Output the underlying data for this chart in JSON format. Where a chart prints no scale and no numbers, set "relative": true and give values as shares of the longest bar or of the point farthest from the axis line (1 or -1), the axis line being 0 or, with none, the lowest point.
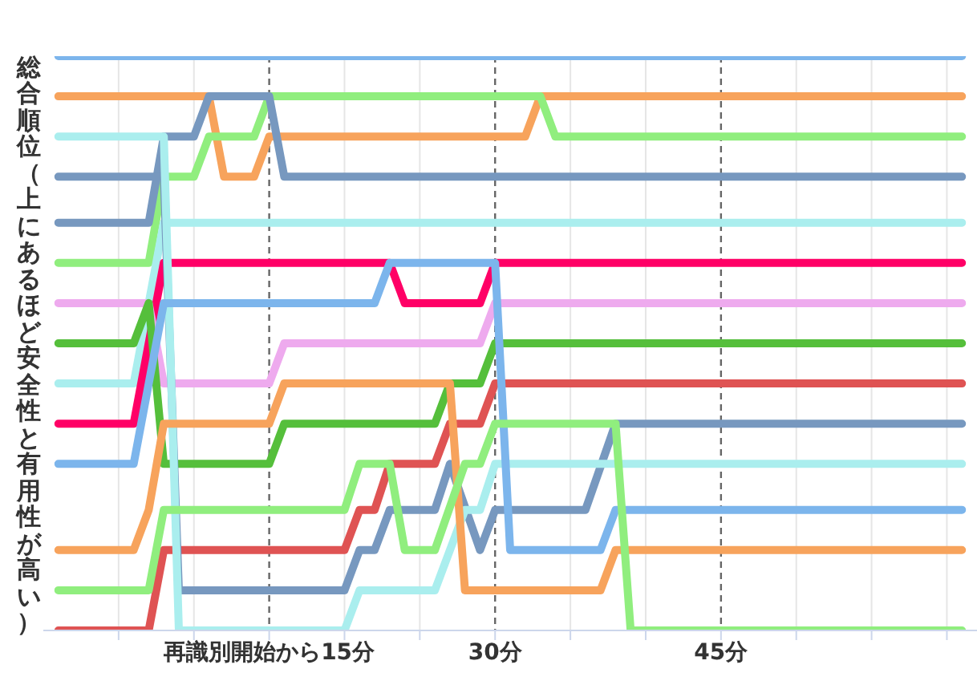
{
  "chart_data": {
    "type": "line",
    "ylabel": "総合順位（上にあるほど安全性と有用性が高い）",
    "relative": true,
    "xlim": [
      0,
      62
    ],
    "xticks": [
      {
        "value": 5,
        "label": null
      },
      {
        "value": 10,
        "label": null
      },
      {
        "value": 15,
        "label": "再識別開始から15分"
      },
      {
        "value": 20,
        "label": null
      },
      {
        "value": 25,
        "label": null
      },
      {
        "value": 30,
        "label": "30分"
      },
      {
        "value": 35,
        "label": null
      },
      {
        "value": 40,
        "label": null
      },
      {
        "value": 45,
        "label": "45分"
      },
      {
        "value": 50,
        "label": null
      },
      {
        "value": 55,
        "label": null
      },
      {
        "value": 60,
        "label": null
      }
    ],
    "grid": "x",
    "tick_labels": "x",
    "marker": "none",
    "line_style": "solid",
    "series": [
      {
        "color": "#7cb5ec",
        "x": [
          1,
          61
        ],
        "values": [
          1,
          1
        ]
      },
      {
        "color": "#f7a35c",
        "x": [
          1,
          11,
          12,
          14,
          15,
          32,
          33,
          61
        ],
        "values": [
          0.93,
          0.93,
          0.79,
          0.79,
          0.86,
          0.86,
          0.93,
          0.93
        ]
      },
      {
        "color": "#90ee7e",
        "x": [
          1,
          7,
          8,
          10,
          11,
          14,
          15,
          33,
          34,
          61
        ],
        "values": [
          0.64,
          0.64,
          0.79,
          0.79,
          0.86,
          0.86,
          0.93,
          0.93,
          0.86,
          0.86
        ]
      },
      {
        "color": "#7798bf",
        "x": [
          1,
          7,
          8,
          10,
          11,
          15,
          16,
          61
        ],
        "values": [
          0.71,
          0.71,
          0.86,
          0.86,
          0.93,
          0.93,
          0.79,
          0.79
        ]
      },
      {
        "color": "#aaeeee",
        "x": [
          1,
          6,
          8,
          61
        ],
        "values": [
          0.43,
          0.43,
          0.71,
          0.71
        ]
      },
      {
        "color": "#ff0066",
        "x": [
          1,
          6,
          8,
          23,
          24,
          29,
          30,
          61
        ],
        "values": [
          0.36,
          0.36,
          0.64,
          0.64,
          0.57,
          0.57,
          0.64,
          0.64
        ]
      },
      {
        "color": "#eeaaee",
        "x": [
          1,
          7,
          8,
          15,
          16,
          29,
          30,
          61
        ],
        "values": [
          0.57,
          0.57,
          0.43,
          0.43,
          0.5,
          0.5,
          0.57,
          0.57
        ]
      },
      {
        "color": "#55bf3b",
        "x": [
          1,
          6,
          7,
          8,
          15,
          16,
          26,
          27,
          29,
          30,
          61
        ],
        "values": [
          0.5,
          0.5,
          0.57,
          0.29,
          0.29,
          0.36,
          0.36,
          0.43,
          0.43,
          0.5,
          0.5
        ]
      },
      {
        "color": "#df5353",
        "x": [
          1,
          7,
          8,
          20,
          21,
          22,
          23,
          26,
          27,
          29,
          30,
          61
        ],
        "values": [
          0,
          0,
          0.14,
          0.14,
          0.21,
          0.21,
          0.29,
          0.29,
          0.36,
          0.36,
          0.43,
          0.43
        ]
      },
      {
        "color": "#7798bf",
        "x": [
          1,
          8,
          9,
          20,
          21,
          22,
          23,
          26,
          27,
          29,
          30,
          36,
          38,
          61
        ],
        "values": [
          0.79,
          0.79,
          0.07,
          0.07,
          0.14,
          0.14,
          0.21,
          0.21,
          0.29,
          0.14,
          0.21,
          0.21,
          0.36,
          0.36
        ]
      },
      {
        "color": "#aaeeee",
        "x": [
          1,
          8,
          9,
          20,
          21,
          26,
          28,
          29,
          30,
          61
        ],
        "values": [
          0.86,
          0.86,
          0,
          0,
          0.07,
          0.07,
          0.21,
          0.21,
          0.29,
          0.29
        ]
      },
      {
        "color": "#7cb5ec",
        "x": [
          1,
          6,
          8,
          22,
          23,
          30,
          31,
          37,
          38,
          61
        ],
        "values": [
          0.29,
          0.29,
          0.57,
          0.57,
          0.64,
          0.64,
          0.14,
          0.14,
          0.21,
          0.21
        ]
      },
      {
        "color": "#f7a35c",
        "x": [
          1,
          6,
          7,
          8,
          15,
          16,
          27,
          28,
          37,
          38,
          61
        ],
        "values": [
          0.14,
          0.14,
          0.21,
          0.36,
          0.36,
          0.43,
          0.43,
          0.07,
          0.07,
          0.14,
          0.14
        ]
      },
      {
        "color": "#90ee7e",
        "x": [
          1,
          7,
          8,
          20,
          21,
          23,
          24,
          26,
          28,
          29,
          30,
          38,
          39,
          61
        ],
        "values": [
          0.07,
          0.07,
          0.21,
          0.21,
          0.29,
          0.29,
          0.14,
          0.14,
          0.29,
          0.29,
          0.36,
          0.36,
          0,
          0
        ]
      }
    ]
  }
}
